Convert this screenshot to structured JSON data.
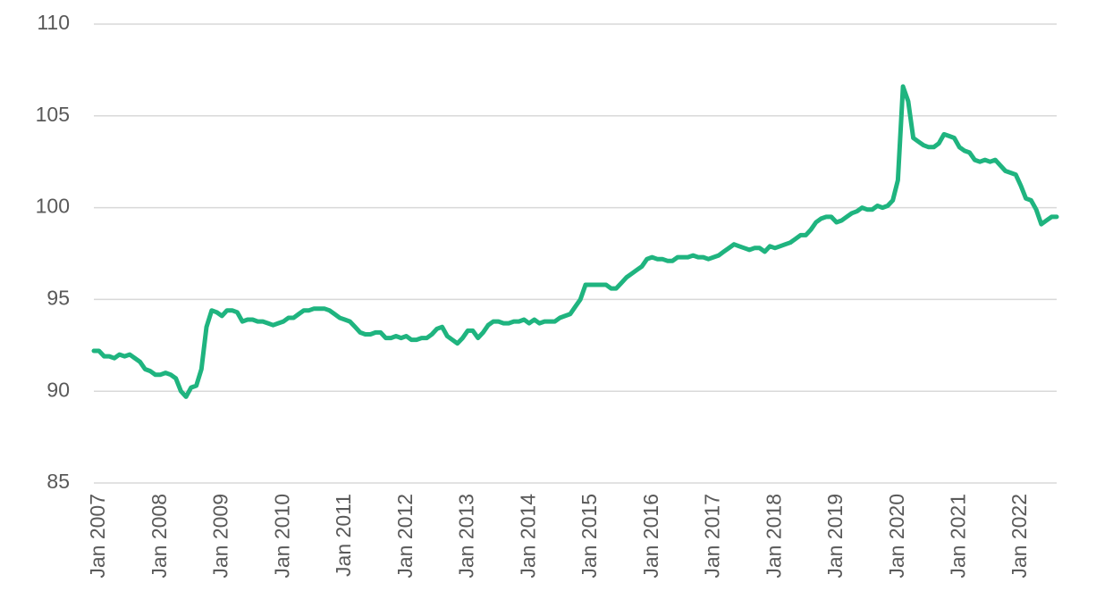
{
  "chart_data": {
    "type": "line",
    "categories": [
      "Jan 2007",
      null,
      null,
      null,
      null,
      null,
      null,
      null,
      null,
      null,
      null,
      null,
      "Jan 2008",
      null,
      null,
      null,
      null,
      null,
      null,
      null,
      null,
      null,
      null,
      null,
      "Jan 2009",
      null,
      null,
      null,
      null,
      null,
      null,
      null,
      null,
      null,
      null,
      null,
      "Jan 2010",
      null,
      null,
      null,
      null,
      null,
      null,
      null,
      null,
      null,
      null,
      null,
      "Jan 2011",
      null,
      null,
      null,
      null,
      null,
      null,
      null,
      null,
      null,
      null,
      null,
      "Jan 2012",
      null,
      null,
      null,
      null,
      null,
      null,
      null,
      null,
      null,
      null,
      null,
      "Jan 2013",
      null,
      null,
      null,
      null,
      null,
      null,
      null,
      null,
      null,
      null,
      null,
      "Jan 2014",
      null,
      null,
      null,
      null,
      null,
      null,
      null,
      null,
      null,
      null,
      null,
      "Jan 2015",
      null,
      null,
      null,
      null,
      null,
      null,
      null,
      null,
      null,
      null,
      null,
      "Jan 2016",
      null,
      null,
      null,
      null,
      null,
      null,
      null,
      null,
      null,
      null,
      null,
      "Jan 2017",
      null,
      null,
      null,
      null,
      null,
      null,
      null,
      null,
      null,
      null,
      null,
      "Jan 2018",
      null,
      null,
      null,
      null,
      null,
      null,
      null,
      null,
      null,
      null,
      null,
      "Jan 2019",
      null,
      null,
      null,
      null,
      null,
      null,
      null,
      null,
      null,
      null,
      null,
      "Jan 2020",
      null,
      null,
      null,
      null,
      null,
      null,
      null,
      null,
      null,
      null,
      null,
      "Jan 2021",
      null,
      null,
      null,
      null,
      null,
      null,
      null,
      null,
      null,
      null,
      null,
      "Jan 2022",
      null,
      null,
      null,
      null,
      null,
      null,
      null,
      null
    ],
    "series": [
      {
        "color": "#1fb47f",
        "values": [
          92.2,
          92.2,
          91.9,
          91.9,
          91.8,
          92.0,
          91.9,
          92.0,
          91.8,
          91.6,
          91.2,
          91.1,
          90.9,
          90.9,
          91.0,
          90.9,
          90.7,
          90.0,
          89.7,
          90.2,
          90.3,
          91.2,
          93.5,
          94.4,
          94.3,
          94.1,
          94.4,
          94.4,
          94.3,
          93.8,
          93.9,
          93.9,
          93.8,
          93.8,
          93.7,
          93.6,
          93.7,
          93.8,
          94.0,
          94.0,
          94.2,
          94.4,
          94.4,
          94.5,
          94.5,
          94.5,
          94.4,
          94.2,
          94.0,
          93.9,
          93.8,
          93.5,
          93.2,
          93.1,
          93.1,
          93.2,
          93.2,
          92.9,
          92.9,
          93.0,
          92.9,
          93.0,
          92.8,
          92.8,
          92.9,
          92.9,
          93.1,
          93.4,
          93.5,
          93.0,
          92.8,
          92.6,
          92.9,
          93.3,
          93.3,
          92.9,
          93.2,
          93.6,
          93.8,
          93.8,
          93.7,
          93.7,
          93.8,
          93.8,
          93.9,
          93.7,
          93.9,
          93.7,
          93.8,
          93.8,
          93.8,
          94.0,
          94.1,
          94.2,
          94.6,
          95.0,
          95.8,
          95.8,
          95.8,
          95.8,
          95.8,
          95.6,
          95.6,
          95.9,
          96.2,
          96.4,
          96.6,
          96.8,
          97.2,
          97.3,
          97.2,
          97.2,
          97.1,
          97.1,
          97.3,
          97.3,
          97.3,
          97.4,
          97.3,
          97.3,
          97.2,
          97.3,
          97.4,
          97.6,
          97.8,
          98.0,
          97.9,
          97.8,
          97.7,
          97.8,
          97.8,
          97.6,
          97.9,
          97.8,
          97.9,
          98.0,
          98.1,
          98.3,
          98.5,
          98.5,
          98.8,
          99.2,
          99.4,
          99.5,
          99.5,
          99.2,
          99.3,
          99.5,
          99.7,
          99.8,
          100.0,
          99.9,
          99.9,
          100.1,
          100.0,
          100.1,
          100.4,
          101.5,
          106.6,
          105.8,
          103.8,
          103.6,
          103.4,
          103.3,
          103.3,
          103.5,
          104.0,
          103.9,
          103.8,
          103.3,
          103.1,
          103.0,
          102.6,
          102.5,
          102.6,
          102.5,
          102.6,
          102.3,
          102.0,
          101.9,
          101.8,
          101.2,
          100.5,
          100.4,
          99.9,
          99.1,
          99.3,
          99.5,
          99.5
        ]
      }
    ],
    "ylim": [
      85,
      110
    ],
    "yticks": [
      85,
      90,
      95,
      100,
      105,
      110
    ],
    "grid": true
  }
}
